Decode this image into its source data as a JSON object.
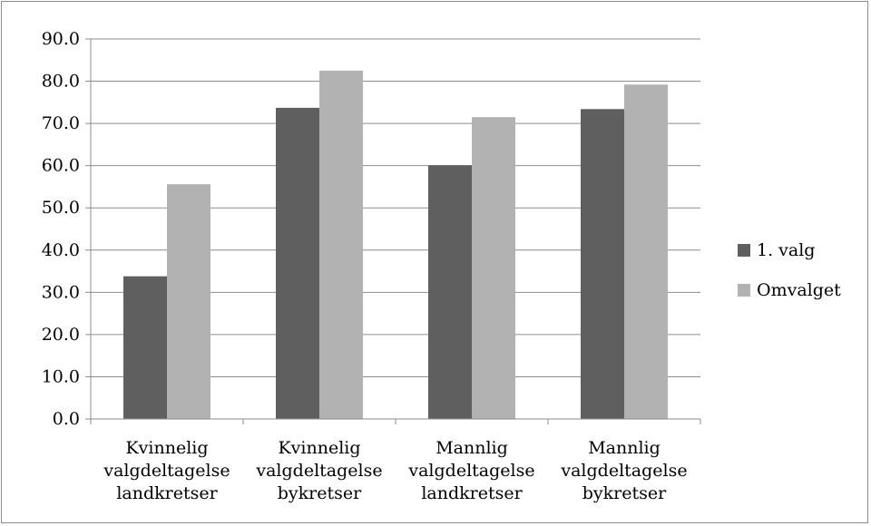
{
  "chart_data": {
    "type": "bar",
    "categories": [
      [
        "Kvinnelig",
        "valgdeltagelse",
        "landkretser"
      ],
      [
        "Kvinnelig",
        "valgdeltagelse",
        "bykretser"
      ],
      [
        "Mannlig",
        "valgdeltagelse",
        "landkretser"
      ],
      [
        "Mannlig",
        "valgdeltagelse",
        "bykretser"
      ]
    ],
    "series": [
      {
        "name": "1. valg",
        "color": "#5f5f5f",
        "values": [
          33.8,
          73.7,
          60.1,
          73.4
        ]
      },
      {
        "name": "Omvalget",
        "color": "#b2b2b2",
        "values": [
          55.6,
          82.5,
          71.5,
          79.2
        ]
      }
    ],
    "ylim": [
      0,
      90
    ],
    "yticks": [
      "0.0",
      "10.0",
      "20.0",
      "30.0",
      "40.0",
      "50.0",
      "60.0",
      "70.0",
      "80.0",
      "90.0"
    ],
    "grid": true,
    "legend_position": "right",
    "title": "",
    "xlabel": "",
    "ylabel": ""
  }
}
